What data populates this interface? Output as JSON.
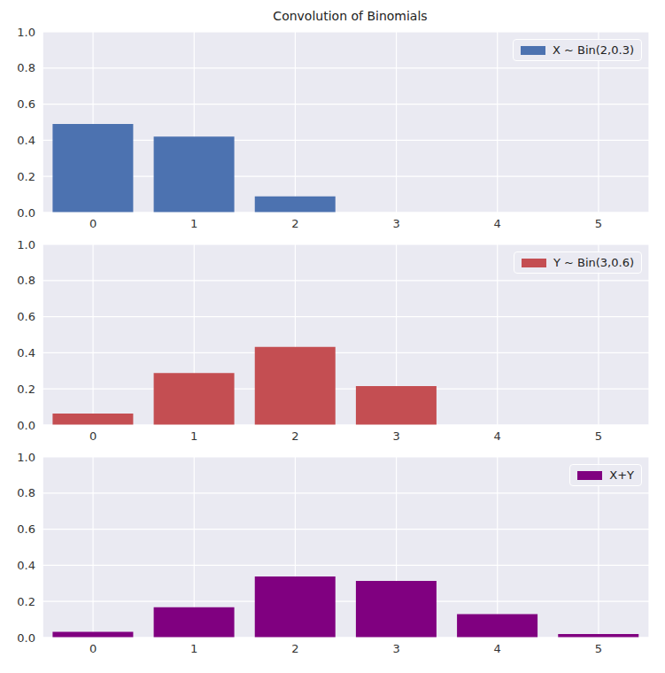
{
  "chart_data": [
    {
      "type": "bar",
      "title": "Convolution of Binomials",
      "categories": [
        "0",
        "1",
        "2",
        "3",
        "4",
        "5"
      ],
      "series": [
        {
          "name": "X ~ Bin(2,0.3)",
          "color": "#4c72b0",
          "values": [
            0.49,
            0.42,
            0.09,
            0,
            0,
            0
          ]
        }
      ],
      "ylim": [
        0,
        1
      ],
      "yticks": [
        {
          "value": 0,
          "label": "0.0"
        },
        {
          "value": 0.2,
          "label": "0.2"
        },
        {
          "value": 0.4,
          "label": "0.4"
        },
        {
          "value": 0.6,
          "label": "0.6"
        },
        {
          "value": 0.8,
          "label": "0.8"
        },
        {
          "value": 1,
          "label": "1.0"
        }
      ],
      "grid": true,
      "legend": "upper right"
    },
    {
      "type": "bar",
      "categories": [
        "0",
        "1",
        "2",
        "3",
        "4",
        "5"
      ],
      "series": [
        {
          "name": "Y ~ Bin(3,0.6)",
          "color": "#c44e52",
          "values": [
            0.064,
            0.288,
            0.432,
            0.216,
            0,
            0
          ]
        }
      ],
      "ylim": [
        0,
        1
      ],
      "yticks": [
        {
          "value": 0,
          "label": "0.0"
        },
        {
          "value": 0.2,
          "label": "0.2"
        },
        {
          "value": 0.4,
          "label": "0.4"
        },
        {
          "value": 0.6,
          "label": "0.6"
        },
        {
          "value": 0.8,
          "label": "0.8"
        },
        {
          "value": 1,
          "label": "1.0"
        }
      ],
      "grid": true,
      "legend": "upper right"
    },
    {
      "type": "bar",
      "categories": [
        "0",
        "1",
        "2",
        "3",
        "4",
        "5"
      ],
      "series": [
        {
          "name": "X+Y",
          "color": "#800080",
          "values": [
            0.03136,
            0.168,
            0.3384,
            0.3132,
            0.1296,
            0.01944
          ]
        }
      ],
      "ylim": [
        0,
        1
      ],
      "yticks": [
        {
          "value": 0,
          "label": "0.0"
        },
        {
          "value": 0.2,
          "label": "0.2"
        },
        {
          "value": 0.4,
          "label": "0.4"
        },
        {
          "value": 0.6,
          "label": "0.6"
        },
        {
          "value": 0.8,
          "label": "0.8"
        },
        {
          "value": 1,
          "label": "1.0"
        }
      ],
      "grid": true,
      "legend": "upper right"
    }
  ]
}
